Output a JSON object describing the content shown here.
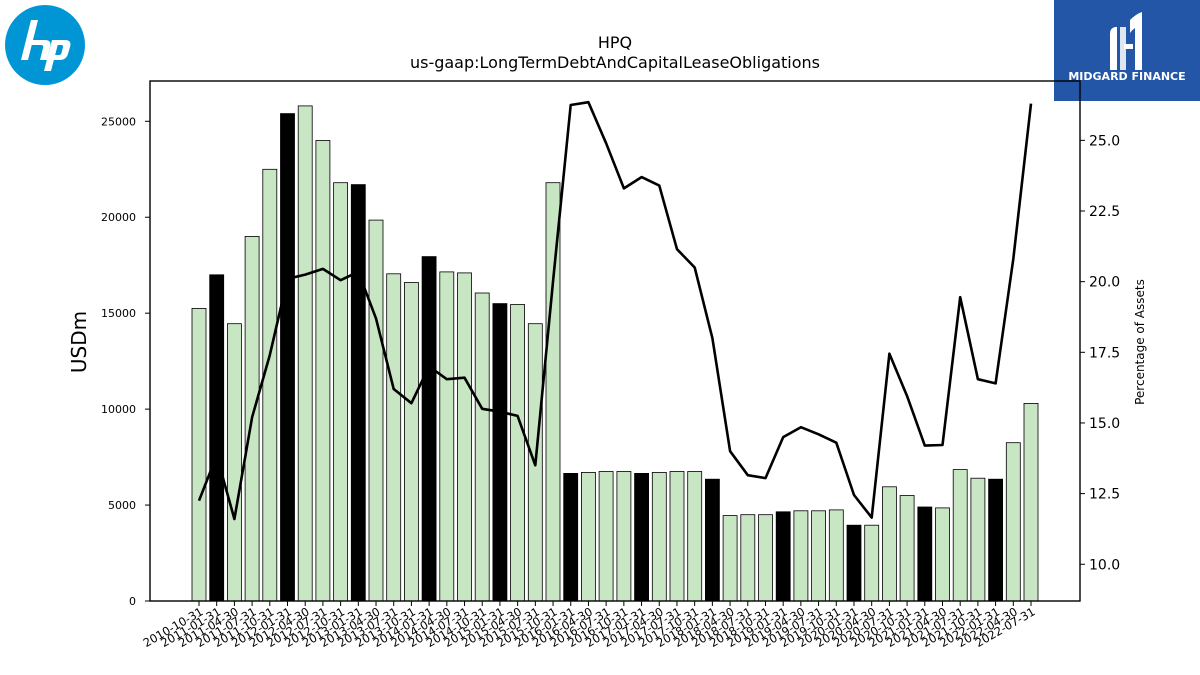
{
  "header": {
    "title": "HPQ",
    "subtitle": "us-gaap:LongTermDebtAndCapitalLeaseObligations"
  },
  "branding": {
    "company_logo": "hp",
    "publisher_logo_text": "MIDGARD FINANCE"
  },
  "chart_data": {
    "type": "bar",
    "title": "HPQ",
    "subtitle": "us-gaap:LongTermDebtAndCapitalLeaseObligations",
    "ylabel": "USDm",
    "y2label": "Percentage of Assets",
    "ylim": [
      0,
      27100
    ],
    "y2lim": [
      8.7,
      27.1
    ],
    "yticks": [
      0,
      5000,
      10000,
      15000,
      20000,
      25000
    ],
    "y2ticks": [
      10.0,
      12.5,
      15.0,
      17.5,
      20.0,
      22.5,
      25.0
    ],
    "categories": [
      "2010-10-31",
      "2011-01-31",
      "2011-04-30",
      "2011-07-31",
      "2011-10-31",
      "2012-01-31",
      "2012-04-30",
      "2012-07-31",
      "2012-10-31",
      "2013-01-31",
      "2013-04-30",
      "2013-07-31",
      "2013-10-31",
      "2014-01-31",
      "2014-04-30",
      "2014-07-31",
      "2014-10-31",
      "2015-01-31",
      "2015-04-30",
      "2015-07-31",
      "2015-10-31",
      "2016-01-31",
      "2016-04-30",
      "2016-07-31",
      "2016-10-31",
      "2017-01-31",
      "2017-04-30",
      "2017-07-31",
      "2017-10-31",
      "2018-01-31",
      "2018-04-30",
      "2018-07-31",
      "2018-10-31",
      "2019-01-31",
      "2019-04-30",
      "2019-07-31",
      "2019-10-31",
      "2020-01-31",
      "2020-04-30",
      "2020-07-31",
      "2020-10-31",
      "2021-01-31",
      "2021-04-30",
      "2021-07-31",
      "2021-10-31",
      "2022-01-31",
      "2022-04-30",
      "2022-07-31"
    ],
    "series": [
      {
        "kind": "bar",
        "values": [
          15250,
          17000,
          14450,
          19000,
          22500,
          25400,
          25800,
          24000,
          21800,
          21700,
          19850,
          17050,
          16600,
          17950,
          17150,
          17100,
          16050,
          15500,
          15450,
          14450,
          21800,
          6650,
          6700,
          6750,
          6750,
          6650,
          6700,
          6750,
          6750,
          6350,
          4450,
          4500,
          4500,
          4650,
          4700,
          4700,
          4750,
          3950,
          3950,
          5950,
          5500,
          4900,
          4850,
          6850,
          6400,
          6350,
          8250,
          10300
        ],
        "colors": [
          "#c8e6c3",
          "#000000",
          "#c8e6c3",
          "#c8e6c3",
          "#c8e6c3",
          "#000000",
          "#c8e6c3",
          "#c8e6c3",
          "#c8e6c3",
          "#000000",
          "#c8e6c3",
          "#c8e6c3",
          "#c8e6c3",
          "#000000",
          "#c8e6c3",
          "#c8e6c3",
          "#c8e6c3",
          "#000000",
          "#c8e6c3",
          "#c8e6c3",
          "#c8e6c3",
          "#000000",
          "#c8e6c3",
          "#c8e6c3",
          "#c8e6c3",
          "#000000",
          "#c8e6c3",
          "#c8e6c3",
          "#c8e6c3",
          "#000000",
          "#c8e6c3",
          "#c8e6c3",
          "#c8e6c3",
          "#000000",
          "#c8e6c3",
          "#c8e6c3",
          "#c8e6c3",
          "#000000",
          "#c8e6c3",
          "#c8e6c3",
          "#c8e6c3",
          "#000000",
          "#c8e6c3",
          "#c8e6c3",
          "#c8e6c3",
          "#000000",
          "#c8e6c3",
          "#c8e6c3"
        ]
      },
      {
        "kind": "line",
        "axis": "right",
        "color": "#000000",
        "values": [
          12.25,
          13.85,
          11.6,
          15.2,
          17.4,
          20.1,
          20.25,
          20.45,
          20.05,
          20.35,
          18.7,
          16.2,
          15.7,
          17.0,
          16.55,
          16.6,
          15.5,
          15.4,
          15.25,
          13.5,
          20.0,
          26.25,
          26.35,
          24.9,
          23.3,
          23.7,
          23.4,
          21.15,
          20.5,
          18.0,
          14.0,
          13.15,
          13.05,
          14.5,
          14.85,
          14.6,
          14.3,
          12.45,
          11.65,
          17.45,
          15.95,
          14.2,
          14.22,
          19.45,
          16.55,
          16.4,
          20.8,
          26.3
        ]
      }
    ],
    "grid": false,
    "legend": "none"
  }
}
